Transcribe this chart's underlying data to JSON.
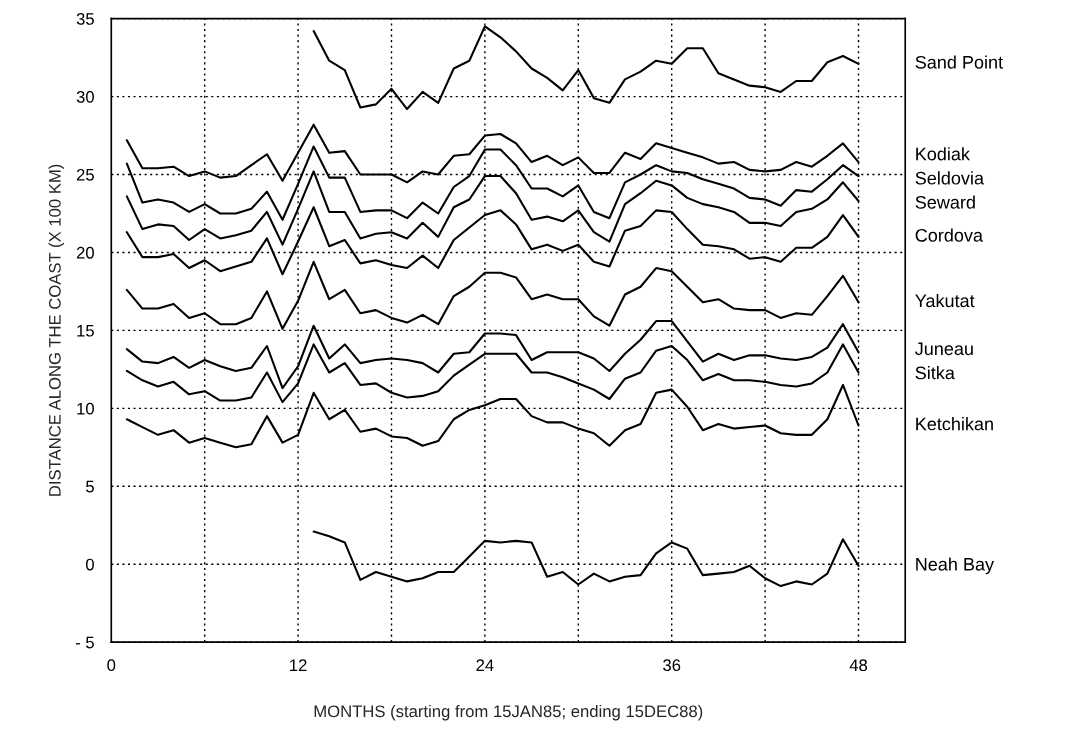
{
  "chart_data": {
    "type": "line",
    "xlabel": "MONTHS (starting from 15JAN85; ending 15DEC88)",
    "ylabel": "DISTANCE ALONG THE COAST (X 100 KM)",
    "x": [
      1,
      2,
      3,
      4,
      5,
      6,
      7,
      8,
      9,
      10,
      11,
      12,
      13,
      14,
      15,
      16,
      17,
      18,
      19,
      20,
      21,
      22,
      23,
      24,
      25,
      26,
      27,
      28,
      29,
      30,
      31,
      32,
      33,
      34,
      35,
      36,
      37,
      38,
      39,
      40,
      41,
      42,
      43,
      44,
      45,
      46,
      47,
      48
    ],
    "xlim": [
      0,
      51
    ],
    "xticks": [
      0,
      {
        "value": 6,
        "label": null
      },
      12,
      {
        "value": 18,
        "label": null
      },
      24,
      {
        "value": 30,
        "label": null
      },
      36,
      {
        "value": 42,
        "label": null
      },
      48
    ],
    "ylim": [
      -5,
      35
    ],
    "yticks": [
      {
        "value": -5,
        "label": "- 5"
      },
      0,
      5,
      10,
      15,
      20,
      25,
      30,
      35
    ],
    "grid": true,
    "legend": false,
    "line_style": "solid",
    "series": [
      {
        "name": "Sand Point",
        "color": "#000000",
        "x": [
          13,
          14,
          15,
          16,
          17,
          18,
          19,
          20,
          21,
          22,
          23,
          24,
          25,
          26,
          27,
          28,
          29,
          30,
          31,
          32,
          33,
          34,
          35,
          36,
          37,
          38,
          39,
          40,
          41,
          42,
          43,
          44,
          45,
          46,
          47,
          48
        ],
        "values": [
          34.2,
          32.3,
          31.7,
          29.3,
          29.5,
          30.5,
          29.2,
          30.3,
          29.6,
          31.8,
          32.3,
          34.5,
          33.8,
          32.9,
          31.8,
          31.2,
          30.4,
          31.7,
          29.9,
          29.6,
          31.1,
          31.6,
          32.3,
          32.1,
          33.1,
          33.1,
          31.5,
          31.1,
          30.7,
          30.6,
          30.3,
          31.0,
          31.0,
          32.2,
          32.6,
          32.1
        ]
      },
      {
        "name": "Kodiak",
        "color": "#000000",
        "values": [
          27.2,
          25.4,
          25.4,
          25.5,
          24.9,
          25.2,
          24.8,
          24.9,
          25.6,
          26.3,
          24.6,
          26.4,
          28.2,
          26.4,
          26.5,
          25.0,
          25.0,
          25.0,
          24.5,
          25.2,
          25.0,
          26.2,
          26.3,
          27.5,
          27.6,
          27.0,
          25.8,
          26.2,
          25.6,
          26.1,
          25.1,
          25.1,
          26.4,
          26.0,
          27.0,
          26.7,
          26.4,
          26.1,
          25.7,
          25.8,
          25.3,
          25.2,
          25.3,
          25.8,
          25.5,
          26.2,
          27.0,
          25.8
        ]
      },
      {
        "name": "Seldovia",
        "color": "#000000",
        "values": [
          25.7,
          23.2,
          23.4,
          23.2,
          22.6,
          23.1,
          22.5,
          22.5,
          22.8,
          23.9,
          22.1,
          24.4,
          26.8,
          24.8,
          24.8,
          22.6,
          22.7,
          22.7,
          22.2,
          23.2,
          22.5,
          24.2,
          24.9,
          26.6,
          26.6,
          25.6,
          24.1,
          24.1,
          23.6,
          24.3,
          22.6,
          22.2,
          24.5,
          25.0,
          25.6,
          25.2,
          25.1,
          24.7,
          24.4,
          24.1,
          23.5,
          23.4,
          23.0,
          24.0,
          23.9,
          24.7,
          25.6,
          24.9
        ]
      },
      {
        "name": "Seward",
        "color": "#000000",
        "values": [
          23.6,
          21.5,
          21.8,
          21.7,
          20.8,
          21.5,
          20.9,
          21.1,
          21.4,
          22.6,
          20.5,
          22.8,
          25.2,
          22.6,
          22.6,
          20.9,
          21.2,
          21.3,
          20.9,
          21.9,
          21.0,
          22.9,
          23.4,
          24.9,
          24.9,
          23.8,
          22.1,
          22.3,
          22.0,
          22.7,
          21.3,
          20.7,
          23.1,
          23.8,
          24.6,
          24.3,
          23.5,
          23.1,
          22.9,
          22.6,
          21.9,
          21.9,
          21.7,
          22.6,
          22.8,
          23.4,
          24.5,
          23.3
        ]
      },
      {
        "name": "Cordova",
        "color": "#000000",
        "values": [
          21.3,
          19.7,
          19.7,
          19.9,
          19.0,
          19.5,
          18.8,
          19.1,
          19.4,
          20.9,
          18.6,
          20.7,
          22.9,
          20.4,
          20.8,
          19.3,
          19.5,
          19.2,
          19.0,
          19.8,
          19.0,
          20.8,
          21.6,
          22.4,
          22.7,
          21.8,
          20.2,
          20.5,
          20.1,
          20.5,
          19.4,
          19.1,
          21.4,
          21.7,
          22.7,
          22.6,
          21.5,
          20.5,
          20.4,
          20.2,
          19.6,
          19.7,
          19.4,
          20.3,
          20.3,
          21.0,
          22.4,
          21.0
        ]
      },
      {
        "name": "Yakutat",
        "color": "#000000",
        "values": [
          17.6,
          16.4,
          16.4,
          16.7,
          15.8,
          16.1,
          15.4,
          15.4,
          15.8,
          17.5,
          15.1,
          16.9,
          19.4,
          17.0,
          17.6,
          16.1,
          16.3,
          15.8,
          15.5,
          16.0,
          15.4,
          17.2,
          17.8,
          18.7,
          18.7,
          18.4,
          17.0,
          17.3,
          17.0,
          17.0,
          15.9,
          15.3,
          17.3,
          17.8,
          19.0,
          18.8,
          17.8,
          16.8,
          17.0,
          16.4,
          16.3,
          16.3,
          15.8,
          16.1,
          16.0,
          17.2,
          18.5,
          16.8
        ]
      },
      {
        "name": "Juneau",
        "color": "#000000",
        "values": [
          13.8,
          13.0,
          12.9,
          13.3,
          12.6,
          13.1,
          12.7,
          12.4,
          12.6,
          14.0,
          11.3,
          12.7,
          15.3,
          13.2,
          14.1,
          12.9,
          13.1,
          13.2,
          13.1,
          12.9,
          12.3,
          13.5,
          13.6,
          14.8,
          14.8,
          14.7,
          13.1,
          13.6,
          13.6,
          13.6,
          13.2,
          12.4,
          13.5,
          14.4,
          15.6,
          15.6,
          14.3,
          13.0,
          13.5,
          13.1,
          13.4,
          13.4,
          13.2,
          13.1,
          13.3,
          13.9,
          15.4,
          13.6
        ]
      },
      {
        "name": "Sitka",
        "color": "#000000",
        "values": [
          12.4,
          11.8,
          11.4,
          11.7,
          10.9,
          11.1,
          10.5,
          10.5,
          10.7,
          12.3,
          10.4,
          11.6,
          14.1,
          12.3,
          12.9,
          11.5,
          11.6,
          11.0,
          10.7,
          10.8,
          11.1,
          12.1,
          12.8,
          13.5,
          13.5,
          13.5,
          12.3,
          12.3,
          12.0,
          11.6,
          11.2,
          10.6,
          11.9,
          12.3,
          13.7,
          14.0,
          13.1,
          11.8,
          12.2,
          11.8,
          11.8,
          11.7,
          11.5,
          11.4,
          11.6,
          12.3,
          14.1,
          12.3
        ]
      },
      {
        "name": "Ketchikan",
        "color": "#000000",
        "values": [
          9.3,
          8.8,
          8.3,
          8.6,
          7.8,
          8.1,
          7.8,
          7.5,
          7.7,
          9.5,
          7.8,
          8.3,
          11.0,
          9.3,
          9.9,
          8.5,
          8.7,
          8.2,
          8.1,
          7.6,
          7.9,
          9.3,
          9.9,
          10.2,
          10.6,
          10.6,
          9.5,
          9.1,
          9.1,
          8.7,
          8.4,
          7.6,
          8.6,
          9.0,
          11.0,
          11.2,
          10.1,
          8.6,
          9.0,
          8.7,
          8.8,
          8.9,
          8.4,
          8.3,
          8.3,
          9.3,
          11.5,
          8.9
        ]
      },
      {
        "name": "Neah Bay",
        "color": "#000000",
        "x": [
          13,
          14,
          15,
          16,
          17,
          18,
          19,
          20,
          21,
          22,
          23,
          24,
          25,
          26,
          27,
          28,
          29,
          30,
          31,
          32,
          33,
          34,
          35,
          36,
          37,
          38,
          39,
          40,
          41,
          42,
          43,
          44,
          45,
          46,
          47,
          48
        ],
        "values": [
          2.1,
          1.8,
          1.4,
          -1.0,
          -0.5,
          -0.8,
          -1.1,
          -0.9,
          -0.5,
          -0.5,
          0.5,
          1.5,
          1.4,
          1.5,
          1.4,
          -0.8,
          -0.5,
          -1.3,
          -0.6,
          -1.1,
          -0.8,
          -0.7,
          0.7,
          1.4,
          1.0,
          -0.7,
          -0.6,
          -0.5,
          -0.1,
          -0.9,
          -1.4,
          -1.1,
          -1.3,
          -0.6,
          1.6,
          -0.1
        ]
      }
    ]
  }
}
